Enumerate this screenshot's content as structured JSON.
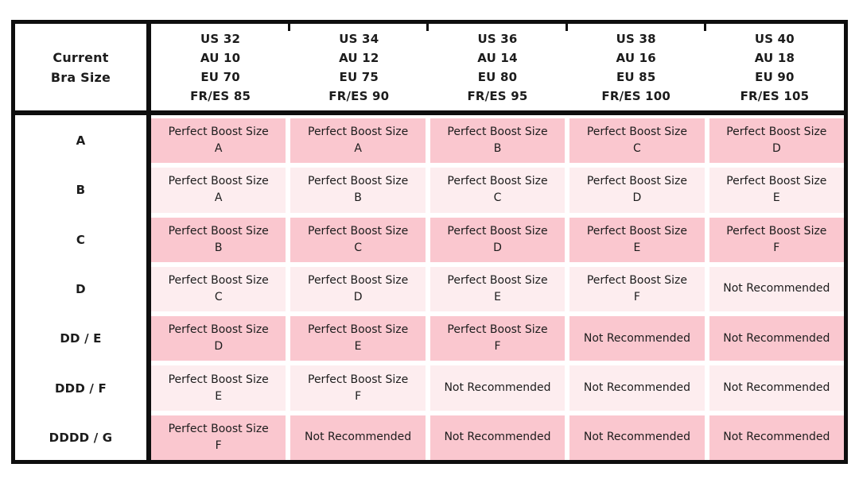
{
  "colors": {
    "dark_pink": "#FAC7CF",
    "light_pink": "#FDEDEF",
    "border_black": "#0E0E0E",
    "text": "#1C1C1C"
  },
  "table": {
    "corner": {
      "lines": [
        "Current",
        "Bra Size"
      ]
    },
    "columns": [
      {
        "lines": [
          "US 32",
          "AU 10",
          "EU 70",
          "FR/ES 85"
        ]
      },
      {
        "lines": [
          "US 34",
          "AU 12",
          "EU 75",
          "FR/ES 90"
        ]
      },
      {
        "lines": [
          "US 36",
          "AU 14",
          "EU 80",
          "FR/ES 95"
        ]
      },
      {
        "lines": [
          "US 38",
          "AU 16",
          "EU 85",
          "FR/ES 100"
        ]
      },
      {
        "lines": [
          "US 40",
          "AU 18",
          "EU 90",
          "FR/ES 105"
        ]
      }
    ],
    "boost_label": "Perfect Boost Size",
    "not_recommended_label": "Not Recommended",
    "rows": [
      {
        "label": "A",
        "shade": "dark",
        "cells": [
          "A",
          "A",
          "B",
          "C",
          "D"
        ]
      },
      {
        "label": "B",
        "shade": "light",
        "cells": [
          "A",
          "B",
          "C",
          "D",
          "E"
        ]
      },
      {
        "label": "C",
        "shade": "dark",
        "cells": [
          "B",
          "C",
          "D",
          "E",
          "F"
        ]
      },
      {
        "label": "D",
        "shade": "light",
        "cells": [
          "C",
          "D",
          "E",
          "F",
          null
        ]
      },
      {
        "label": "DD / E",
        "shade": "dark",
        "cells": [
          "D",
          "E",
          "F",
          null,
          null
        ]
      },
      {
        "label": "DDD / F",
        "shade": "light",
        "cells": [
          "E",
          "F",
          null,
          null,
          null
        ]
      },
      {
        "label": "DDDD / G",
        "shade": "dark",
        "cells": [
          "F",
          null,
          null,
          null,
          null
        ]
      }
    ]
  },
  "chart_data": {
    "type": "table",
    "columns": [
      "Current Bra Size",
      "US 32 / AU 10 / EU 70 / FR/ES 85",
      "US 34 / AU 12 / EU 75 / FR/ES 90",
      "US 36 / AU 14 / EU 80 / FR/ES 95",
      "US 38 / AU 16 / EU 85 / FR/ES 100",
      "US 40 / AU 18 / EU 90 / FR/ES 105"
    ],
    "rows": [
      [
        "A",
        "Perfect Boost Size A",
        "Perfect Boost Size A",
        "Perfect Boost Size B",
        "Perfect Boost Size C",
        "Perfect Boost Size D"
      ],
      [
        "B",
        "Perfect Boost Size A",
        "Perfect Boost Size B",
        "Perfect Boost Size C",
        "Perfect Boost Size D",
        "Perfect Boost Size E"
      ],
      [
        "C",
        "Perfect Boost Size B",
        "Perfect Boost Size C",
        "Perfect Boost Size D",
        "Perfect Boost Size E",
        "Perfect Boost Size F"
      ],
      [
        "D",
        "Perfect Boost Size C",
        "Perfect Boost Size D",
        "Perfect Boost Size E",
        "Perfect Boost Size F",
        "Not Recommended"
      ],
      [
        "DD / E",
        "Perfect Boost Size D",
        "Perfect Boost Size E",
        "Perfect Boost Size F",
        "Not Recommended",
        "Not Recommended"
      ],
      [
        "DDD / F",
        "Perfect Boost Size E",
        "Perfect Boost Size F",
        "Not Recommended",
        "Not Recommended",
        "Not Recommended"
      ],
      [
        "DDDD / G",
        "Perfect Boost Size F",
        "Not Recommended",
        "Not Recommended",
        "Not Recommended",
        "Not Recommended"
      ]
    ],
    "layout_hints": {
      "grid": "white gaps between cells",
      "row_shading_alternates": [
        "dark_pink",
        "light_pink"
      ]
    }
  }
}
